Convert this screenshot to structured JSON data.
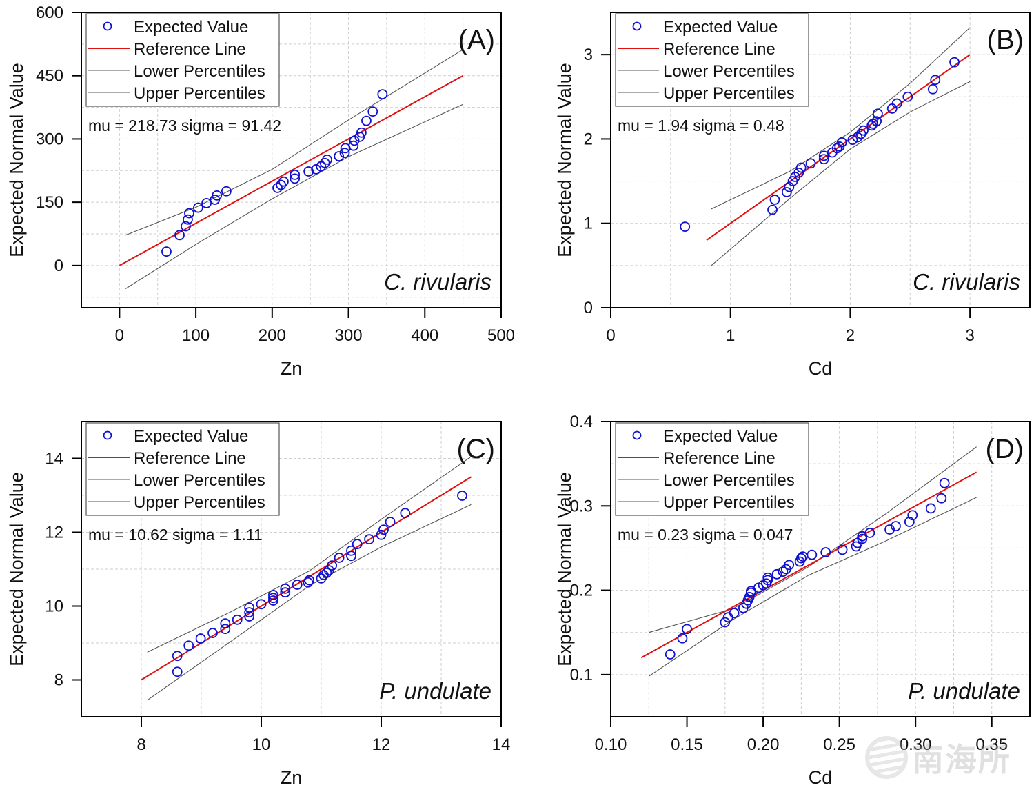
{
  "figure": {
    "watermark_text": "南海所"
  },
  "legend": {
    "expected": "Expected Value",
    "reference": "Reference Line",
    "lower": "Lower Percentiles",
    "upper": "Upper Percentiles"
  },
  "colors": {
    "points": "#1010d0",
    "reference": "#e01010",
    "percentiles": "#555555",
    "grid": "#cfcfcf",
    "axis": "#000000"
  },
  "chart_data": [
    {
      "id": "A",
      "type": "scatter",
      "panel_label": "(A)",
      "species": "C. rivularis",
      "stats": "mu = 218.73  sigma = 91.42",
      "xlabel": "Zn",
      "ylabel": "Expected Normal Value",
      "xlim": [
        -50,
        500
      ],
      "ylim": [
        -100,
        600
      ],
      "xticks": [
        0,
        100,
        200,
        300,
        400,
        500
      ],
      "xtick_labels": [
        "0",
        "100",
        "200",
        "300",
        "400",
        "500"
      ],
      "yticks": [
        0,
        150,
        300,
        450,
        600
      ],
      "ytick_labels": [
        "0",
        "150",
        "300",
        "450",
        "600"
      ],
      "xminor": [
        50,
        150,
        250,
        350,
        450
      ],
      "yminor": [
        -75,
        75,
        225,
        375,
        525
      ],
      "grid": true,
      "legend_position": "top-left",
      "points": [
        [
          61.5,
          33
        ],
        [
          78.7,
          72
        ],
        [
          86.8,
          93
        ],
        [
          89.5,
          109
        ],
        [
          91.3,
          124
        ],
        [
          103,
          137
        ],
        [
          114,
          148
        ],
        [
          125,
          156
        ],
        [
          127.6,
          166
        ],
        [
          140,
          176
        ],
        [
          207,
          184
        ],
        [
          211.6,
          191
        ],
        [
          215,
          199
        ],
        [
          229.7,
          206
        ],
        [
          229.7,
          215
        ],
        [
          247.7,
          223
        ],
        [
          257.6,
          228
        ],
        [
          264,
          235
        ],
        [
          269,
          243
        ],
        [
          272,
          251
        ],
        [
          287.5,
          259
        ],
        [
          295,
          267
        ],
        [
          296,
          278
        ],
        [
          306.5,
          284
        ],
        [
          307.7,
          296
        ],
        [
          314.6,
          305
        ],
        [
          317,
          315
        ],
        [
          323.4,
          343
        ],
        [
          331.8,
          365
        ],
        [
          344.5,
          406
        ]
      ],
      "reference_line": [
        [
          0,
          0
        ],
        [
          450,
          450
        ]
      ],
      "upper_percentile": [
        [
          8,
          72
        ],
        [
          100,
          138
        ],
        [
          200,
          228
        ],
        [
          300,
          345
        ],
        [
          450,
          512
        ]
      ],
      "lower_percentile": [
        [
          8,
          -55
        ],
        [
          100,
          50
        ],
        [
          200,
          158
        ],
        [
          300,
          258
        ],
        [
          450,
          382
        ]
      ]
    },
    {
      "id": "B",
      "type": "scatter",
      "panel_label": "(B)",
      "species": "C. rivularis",
      "stats": "mu = 1.94  sigma = 0.48",
      "xlabel": "Cd",
      "ylabel": "Expected Normal Value",
      "xlim": [
        0,
        3.5
      ],
      "ylim": [
        0,
        3.5
      ],
      "xticks": [
        0,
        1,
        2,
        3
      ],
      "xtick_labels": [
        "0",
        "1",
        "2",
        "3"
      ],
      "yticks": [
        0,
        1,
        2,
        3
      ],
      "ytick_labels": [
        "0",
        "1",
        "2",
        "3"
      ],
      "xminor": [
        0.5,
        1.5,
        2.5
      ],
      "yminor": [
        0.5,
        1.5,
        2.5
      ],
      "grid": true,
      "legend_position": "top-left",
      "points": [
        [
          0.62,
          0.96
        ],
        [
          1.35,
          1.16
        ],
        [
          1.37,
          1.28
        ],
        [
          1.47,
          1.37
        ],
        [
          1.49,
          1.43
        ],
        [
          1.52,
          1.5
        ],
        [
          1.54,
          1.55
        ],
        [
          1.57,
          1.6
        ],
        [
          1.59,
          1.66
        ],
        [
          1.67,
          1.71
        ],
        [
          1.78,
          1.76
        ],
        [
          1.78,
          1.8
        ],
        [
          1.85,
          1.84
        ],
        [
          1.89,
          1.89
        ],
        [
          1.91,
          1.91
        ],
        [
          1.93,
          1.96
        ],
        [
          2.02,
          1.99
        ],
        [
          2.06,
          2.02
        ],
        [
          2.09,
          2.06
        ],
        [
          2.11,
          2.1
        ],
        [
          2.18,
          2.16
        ],
        [
          2.19,
          2.18
        ],
        [
          2.22,
          2.21
        ],
        [
          2.23,
          2.3
        ],
        [
          2.35,
          2.36
        ],
        [
          2.39,
          2.42
        ],
        [
          2.48,
          2.5
        ],
        [
          2.69,
          2.59
        ],
        [
          2.71,
          2.7
        ],
        [
          2.87,
          2.91
        ]
      ],
      "reference_line": [
        [
          0.8,
          0.8
        ],
        [
          3.0,
          3.0
        ]
      ],
      "upper_percentile": [
        [
          0.84,
          1.17
        ],
        [
          1.5,
          1.62
        ],
        [
          2.0,
          2.08
        ],
        [
          2.5,
          2.66
        ],
        [
          3.0,
          3.32
        ]
      ],
      "lower_percentile": [
        [
          0.84,
          0.5
        ],
        [
          1.5,
          1.3
        ],
        [
          2.0,
          1.88
        ],
        [
          2.5,
          2.32
        ],
        [
          3.0,
          2.68
        ]
      ]
    },
    {
      "id": "C",
      "type": "scatter",
      "panel_label": "(C)",
      "species": "P. undulate",
      "stats": "mu = 10.62  sigma = 1.11",
      "xlabel": "Zn",
      "ylabel": "Expected Normal Value",
      "xlim": [
        7,
        14
      ],
      "ylim": [
        7,
        15
      ],
      "xticks": [
        8,
        10,
        12,
        14
      ],
      "xtick_labels": [
        "8",
        "10",
        "12",
        "14"
      ],
      "yticks": [
        8,
        10,
        12,
        14
      ],
      "ytick_labels": [
        "8",
        "10",
        "12",
        "14"
      ],
      "xminor": [
        9,
        11,
        13
      ],
      "yminor": [
        9,
        11,
        13
      ],
      "grid": true,
      "legend_position": "top-left",
      "points": [
        [
          8.6,
          8.22
        ],
        [
          8.6,
          8.65
        ],
        [
          8.79,
          8.93
        ],
        [
          8.99,
          9.12
        ],
        [
          9.19,
          9.27
        ],
        [
          9.4,
          9.38
        ],
        [
          9.4,
          9.53
        ],
        [
          9.6,
          9.63
        ],
        [
          9.8,
          9.72
        ],
        [
          9.8,
          9.83
        ],
        [
          9.8,
          9.96
        ],
        [
          10.0,
          10.05
        ],
        [
          10.2,
          10.15
        ],
        [
          10.2,
          10.22
        ],
        [
          10.2,
          10.3
        ],
        [
          10.4,
          10.37
        ],
        [
          10.4,
          10.47
        ],
        [
          10.6,
          10.58
        ],
        [
          10.78,
          10.64
        ],
        [
          10.8,
          10.7
        ],
        [
          11.0,
          10.75
        ],
        [
          11.04,
          10.84
        ],
        [
          11.09,
          10.9
        ],
        [
          11.13,
          10.97
        ],
        [
          11.18,
          11.1
        ],
        [
          11.3,
          11.31
        ],
        [
          11.5,
          11.36
        ],
        [
          11.5,
          11.5
        ],
        [
          11.6,
          11.68
        ],
        [
          11.8,
          11.81
        ],
        [
          12.0,
          11.93
        ],
        [
          12.04,
          12.07
        ],
        [
          12.15,
          12.28
        ],
        [
          12.4,
          12.52
        ],
        [
          13.35,
          12.99
        ]
      ],
      "reference_line": [
        [
          8,
          8
        ],
        [
          13.5,
          13.5
        ]
      ],
      "upper_percentile": [
        [
          8.1,
          8.75
        ],
        [
          9.5,
          9.85
        ],
        [
          10.8,
          10.95
        ],
        [
          12.0,
          12.35
        ],
        [
          13.5,
          14.05
        ]
      ],
      "lower_percentile": [
        [
          8.1,
          7.45
        ],
        [
          9.5,
          9.05
        ],
        [
          10.8,
          10.55
        ],
        [
          12.0,
          11.6
        ],
        [
          13.5,
          12.75
        ]
      ]
    },
    {
      "id": "D",
      "type": "scatter",
      "panel_label": "(D)",
      "species": "P. undulate",
      "stats": "mu = 0.23  sigma = 0.047",
      "xlabel": "Cd",
      "ylabel": "Expected Normal Value",
      "xlim": [
        0.1,
        0.375
      ],
      "ylim": [
        0.05,
        0.4
      ],
      "xticks": [
        0.1,
        0.15,
        0.2,
        0.25,
        0.3,
        0.35
      ],
      "xtick_labels": [
        "0.10",
        "0.15",
        "0.20",
        "0.25",
        "0.30",
        "0.35"
      ],
      "yticks": [
        0.1,
        0.2,
        0.3,
        0.4
      ],
      "ytick_labels": [
        "0.1",
        "0.2",
        "0.3",
        "0.4"
      ],
      "xminor": [
        0.125,
        0.175,
        0.225,
        0.275,
        0.325,
        0.375
      ],
      "yminor": [
        0.15,
        0.25,
        0.35
      ],
      "grid": true,
      "legend_position": "top-left",
      "points": [
        [
          0.139,
          0.124
        ],
        [
          0.147,
          0.143
        ],
        [
          0.15,
          0.154
        ],
        [
          0.175,
          0.162
        ],
        [
          0.177,
          0.168
        ],
        [
          0.181,
          0.173
        ],
        [
          0.187,
          0.179
        ],
        [
          0.189,
          0.184
        ],
        [
          0.19,
          0.188
        ],
        [
          0.191,
          0.192
        ],
        [
          0.192,
          0.197
        ],
        [
          0.192,
          0.199
        ],
        [
          0.197,
          0.203
        ],
        [
          0.2,
          0.206
        ],
        [
          0.202,
          0.208
        ],
        [
          0.203,
          0.212
        ],
        [
          0.203,
          0.215
        ],
        [
          0.209,
          0.219
        ],
        [
          0.213,
          0.222
        ],
        [
          0.215,
          0.225
        ],
        [
          0.217,
          0.23
        ],
        [
          0.224,
          0.234
        ],
        [
          0.225,
          0.238
        ],
        [
          0.226,
          0.24
        ],
        [
          0.232,
          0.242
        ],
        [
          0.241,
          0.245
        ],
        [
          0.252,
          0.248
        ],
        [
          0.261,
          0.252
        ],
        [
          0.262,
          0.256
        ],
        [
          0.265,
          0.261
        ],
        [
          0.265,
          0.264
        ],
        [
          0.27,
          0.268
        ],
        [
          0.283,
          0.272
        ],
        [
          0.287,
          0.276
        ],
        [
          0.296,
          0.281
        ],
        [
          0.298,
          0.289
        ],
        [
          0.31,
          0.297
        ],
        [
          0.317,
          0.309
        ],
        [
          0.319,
          0.327
        ]
      ],
      "reference_line": [
        [
          0.12,
          0.12
        ],
        [
          0.34,
          0.34
        ]
      ],
      "upper_percentile": [
        [
          0.125,
          0.15
        ],
        [
          0.18,
          0.178
        ],
        [
          0.23,
          0.228
        ],
        [
          0.28,
          0.29
        ],
        [
          0.34,
          0.37
        ]
      ],
      "lower_percentile": [
        [
          0.125,
          0.098
        ],
        [
          0.18,
          0.165
        ],
        [
          0.23,
          0.218
        ],
        [
          0.28,
          0.258
        ],
        [
          0.34,
          0.31
        ]
      ]
    }
  ]
}
